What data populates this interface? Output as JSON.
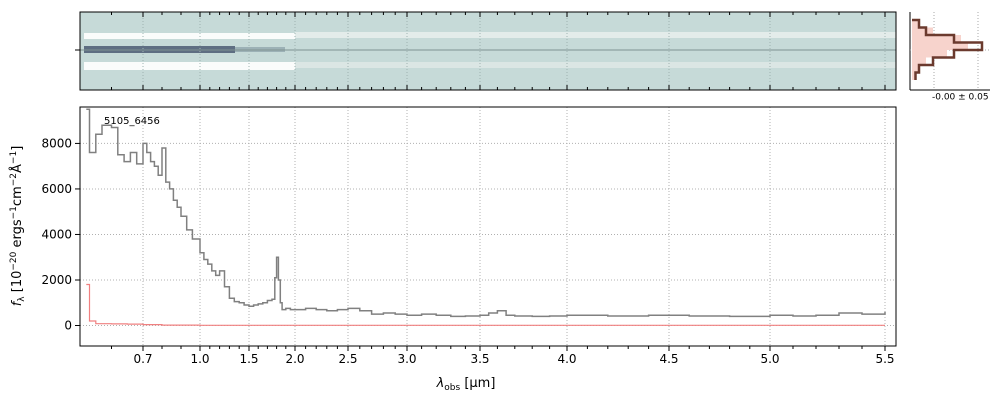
{
  "chart_data": [
    {
      "type": "heatmap",
      "panel": "2d-spectrum",
      "description_source": "cutout",
      "y_ticks": [
        0
      ],
      "x_ticks_shared_with": "1d-spectrum",
      "colormap": "bone"
    },
    {
      "type": "line",
      "panel": "1d-spectrum",
      "annotation": "5105_6456",
      "xlabel_main": "λ",
      "xlabel_sub": "obs",
      "xlabel_unit": " [μm]",
      "ylabel_parts": {
        "prefix": "f",
        "prefix_sub": "λ",
        "mid1": " [10",
        "exp1": "−20",
        "mid2": " ergs",
        "exp2": "−1",
        "mid3": "cm",
        "exp3": "−2",
        "mid4": "Å",
        "exp4": "−1",
        "end": "]"
      },
      "x_ticks": [
        0.7,
        1.0,
        1.5,
        2.0,
        2.5,
        3.0,
        3.5,
        4.0,
        4.5,
        5.0,
        5.5
      ],
      "x_tick_labels": [
        "0.7",
        "1.0",
        "1.5",
        "2.0",
        "2.5",
        "3.0",
        "3.5",
        "4.0",
        "4.5",
        "5.0",
        "5.5"
      ],
      "y_ticks": [
        0,
        2000,
        4000,
        6000,
        8000
      ],
      "y_tick_labels": [
        "0",
        "2000",
        "4000",
        "6000",
        "8000"
      ],
      "xlim": [
        0.5,
        5.52
      ],
      "ylim": [
        -900,
        9600
      ],
      "grid": true,
      "x_scale": "prism (nonlinear)",
      "series": [
        {
          "color": "#808080",
          "x": [
            0.52,
            0.53,
            0.55,
            0.57,
            0.6,
            0.62,
            0.64,
            0.66,
            0.68,
            0.7,
            0.72,
            0.74,
            0.76,
            0.78,
            0.8,
            0.82,
            0.84,
            0.86,
            0.88,
            0.9,
            0.93,
            0.96,
            1.0,
            1.04,
            1.08,
            1.12,
            1.16,
            1.2,
            1.25,
            1.3,
            1.35,
            1.4,
            1.45,
            1.5,
            1.55,
            1.6,
            1.65,
            1.7,
            1.75,
            1.78,
            1.8,
            1.82,
            1.84,
            1.86,
            1.9,
            1.95,
            2.0,
            2.1,
            2.2,
            2.3,
            2.4,
            2.5,
            2.6,
            2.7,
            2.8,
            2.9,
            3.0,
            3.1,
            3.2,
            3.3,
            3.4,
            3.5,
            3.55,
            3.6,
            3.65,
            3.7,
            3.8,
            3.9,
            4.0,
            4.2,
            4.4,
            4.6,
            4.8,
            5.0,
            5.1,
            5.2,
            5.3,
            5.4,
            5.5
          ],
          "y": [
            9500,
            7600,
            8400,
            8800,
            8700,
            7500,
            7200,
            7600,
            7100,
            8000,
            7600,
            7200,
            7000,
            6600,
            7800,
            6300,
            6000,
            5500,
            5200,
            4800,
            4200,
            3800,
            3200,
            2900,
            2700,
            2400,
            2200,
            2400,
            1700,
            1200,
            1050,
            1000,
            900,
            850,
            900,
            950,
            1000,
            1100,
            1150,
            2100,
            3000,
            2000,
            1000,
            700,
            750,
            700,
            700,
            750,
            700,
            650,
            700,
            750,
            650,
            500,
            550,
            500,
            450,
            500,
            450,
            400,
            420,
            450,
            550,
            650,
            450,
            420,
            400,
            420,
            450,
            420,
            450,
            420,
            400,
            450,
            420,
            450,
            550,
            500,
            600
          ]
        },
        {
          "color": "#f08080",
          "x": [
            0.52,
            0.53,
            0.55,
            0.6,
            0.65,
            0.7,
            0.8,
            1.0,
            2.0,
            3.0,
            4.0,
            5.0,
            5.5
          ],
          "y": [
            1800,
            200,
            80,
            70,
            60,
            40,
            20,
            10,
            10,
            10,
            10,
            10,
            10
          ]
        }
      ]
    },
    {
      "type": "line",
      "panel": "profile",
      "label": "-0.00 ± 0.05",
      "series": [
        {
          "color": "#6b3a2e",
          "profile": [
            0.1,
            0.2,
            0.6,
            1.0,
            0.6,
            0.3,
            0.1,
            0.05
          ]
        },
        {
          "color": "#f4c9c0",
          "profile": [
            0.1,
            0.3,
            0.7,
            0.8,
            0.5,
            0.2,
            0.1,
            0.05
          ]
        }
      ]
    }
  ]
}
